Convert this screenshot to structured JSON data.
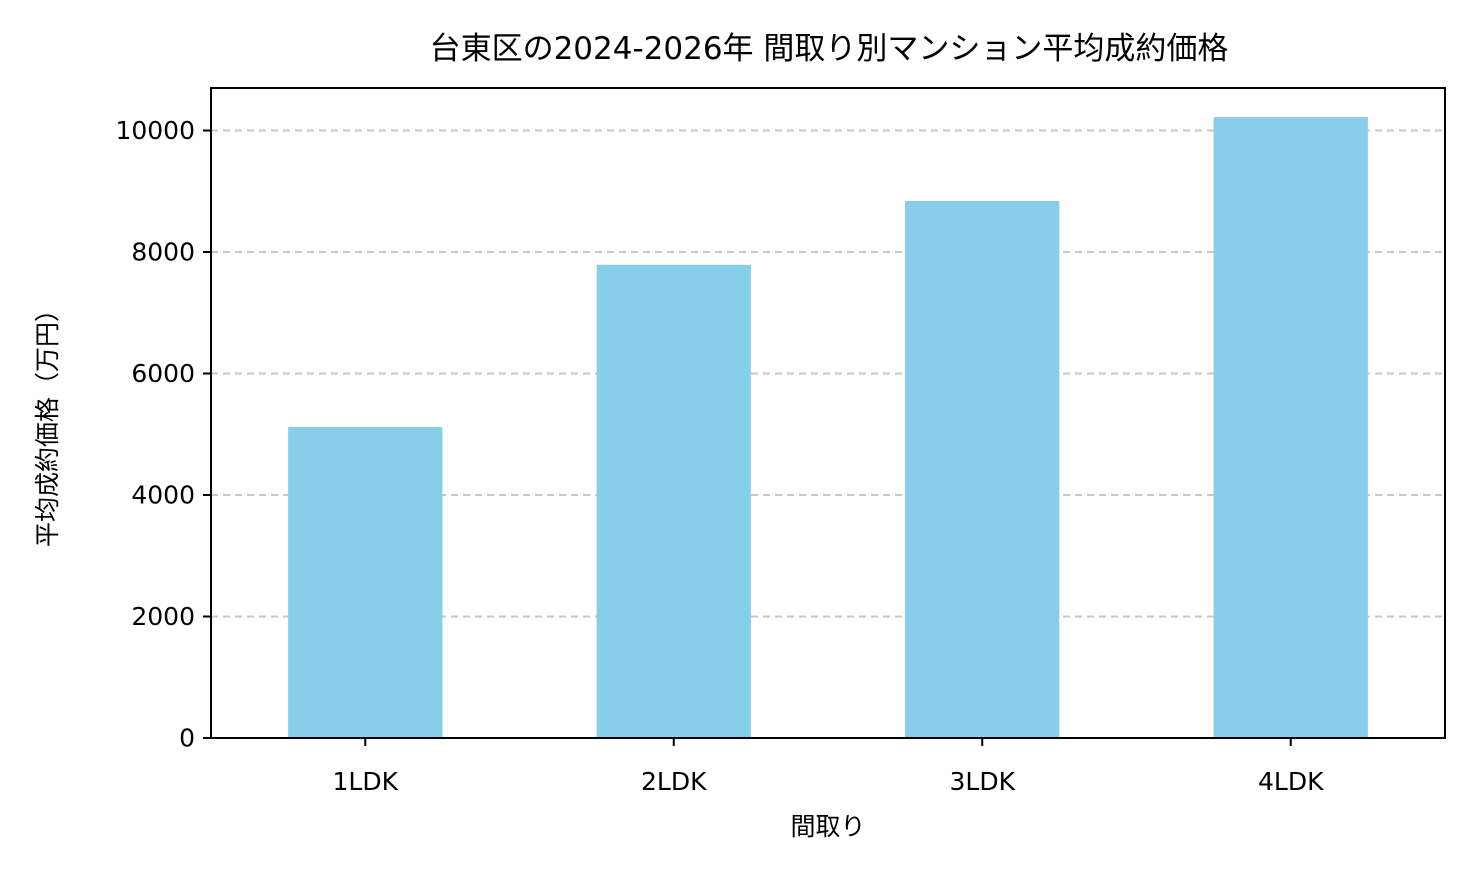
{
  "chart_data": {
    "type": "bar",
    "title": "台東区の2024-2026年 間取り別マンション平均成約価格",
    "xlabel": "間取り",
    "ylabel": "平均成約価格（万円）",
    "categories": [
      "1LDK",
      "2LDK",
      "3LDK",
      "4LDK"
    ],
    "values": [
      5120,
      7790,
      8840,
      10220
    ],
    "ylim": [
      0,
      10700
    ],
    "yticks": [
      0,
      2000,
      4000,
      6000,
      8000,
      10000
    ],
    "grid": "y-dashed",
    "legend": "none",
    "bar_color": "#87CEEB",
    "grid_color": "#c8c8c8"
  }
}
